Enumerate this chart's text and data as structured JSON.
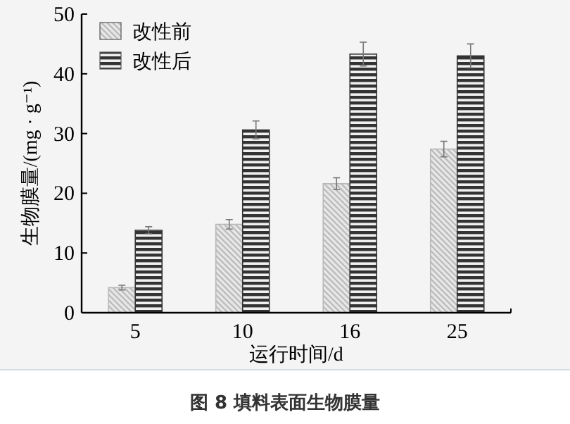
{
  "chart_data": {
    "type": "bar",
    "xlabel": "运行时间/d",
    "ylabel": "生物膜量/(mg · g⁻¹)",
    "categories": [
      "5",
      "10",
      "16",
      "25"
    ],
    "series": [
      {
        "name": "改性前",
        "color": "#b8b8b8",
        "values": [
          4.2,
          14.8,
          21.6,
          27.4
        ],
        "errors": [
          0.4,
          0.8,
          1.0,
          1.3
        ]
      },
      {
        "name": "改性后",
        "color": "#333333",
        "values": [
          13.8,
          30.6,
          43.3,
          43.0
        ],
        "errors": [
          0.6,
          1.5,
          2.0,
          2.0
        ]
      }
    ],
    "ylim": [
      0,
      50
    ],
    "yticks": [
      0,
      10,
      20,
      30,
      40,
      50
    ],
    "legend": "top left",
    "annotations": [
      "图 8  填料表面生物膜量"
    ]
  }
}
